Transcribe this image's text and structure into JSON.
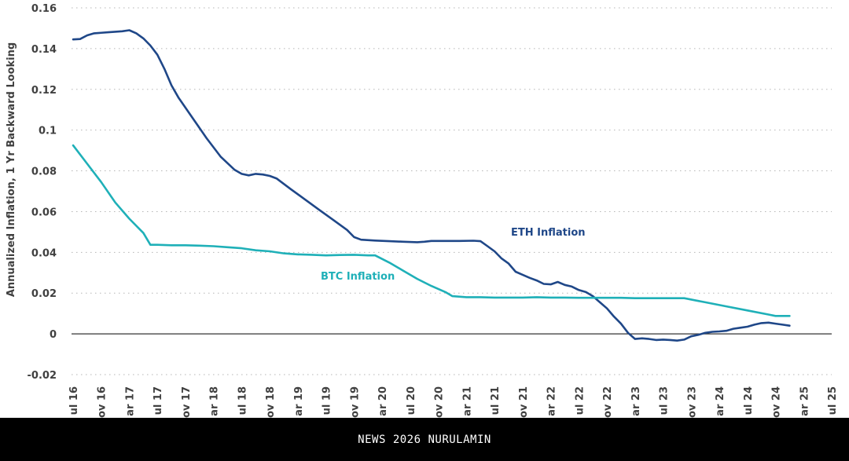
{
  "chart_data": {
    "type": "line",
    "title": "",
    "xlabel": "",
    "ylabel": "Annualized Inflation, 1 Yr Backward Looking",
    "ylim": [
      -0.02,
      0.16
    ],
    "yticks": [
      -0.02,
      0,
      0.02,
      0.04,
      0.06,
      0.08,
      0.1,
      0.12,
      0.14,
      0.16
    ],
    "ytick_labels": [
      "-0.02",
      "0",
      "0.02",
      "0.04",
      "0.06",
      "0.08",
      "0.1",
      "0.12",
      "0.14",
      "0.16"
    ],
    "grid": "horizontal-dotted",
    "zero_line": true,
    "x_range_months": [
      0,
      108
    ],
    "xtick_labels": [
      "ul 16",
      "ov 16",
      "ar 17",
      "ul 17",
      "ov 17",
      "ar 18",
      "ul 18",
      "ov 18",
      "ar 19",
      "ul 19",
      "ov 19",
      "ar 20",
      "ul 20",
      "ov 20",
      "ar 21",
      "ul 21",
      "ov 21",
      "ar 22",
      "ul 22",
      "ov 22",
      "ar 23",
      "ul 23",
      "ov 23",
      "ar 24",
      "ul 24",
      "ov 24",
      "ar 25",
      "ul 25"
    ],
    "series": [
      {
        "name": "ETH Inflation",
        "color": "#1f4788",
        "label": "ETH Inflation",
        "points": [
          [
            0,
            0.1445
          ],
          [
            1,
            0.1447
          ],
          [
            2,
            0.1465
          ],
          [
            3,
            0.1475
          ],
          [
            5,
            0.148
          ],
          [
            7,
            0.1485
          ],
          [
            8,
            0.149
          ],
          [
            9,
            0.1475
          ],
          [
            10,
            0.145
          ],
          [
            11,
            0.1415
          ],
          [
            12,
            0.137
          ],
          [
            13,
            0.13
          ],
          [
            14,
            0.122
          ],
          [
            15,
            0.116
          ],
          [
            17,
            0.106
          ],
          [
            19,
            0.096
          ],
          [
            21,
            0.087
          ],
          [
            23,
            0.0805
          ],
          [
            24,
            0.0785
          ],
          [
            25,
            0.0778
          ],
          [
            26,
            0.0785
          ],
          [
            27,
            0.0782
          ],
          [
            28,
            0.0775
          ],
          [
            29,
            0.0762
          ],
          [
            31,
            0.071
          ],
          [
            33,
            0.066
          ],
          [
            35,
            0.061
          ],
          [
            37,
            0.056
          ],
          [
            39,
            0.051
          ],
          [
            40,
            0.0475
          ],
          [
            41,
            0.0462
          ],
          [
            43,
            0.0458
          ],
          [
            45,
            0.0455
          ],
          [
            47,
            0.0452
          ],
          [
            49,
            0.045
          ],
          [
            50,
            0.0452
          ],
          [
            51,
            0.0456
          ],
          [
            53,
            0.0456
          ],
          [
            55,
            0.0456
          ],
          [
            57,
            0.0457
          ],
          [
            58,
            0.0455
          ],
          [
            59,
            0.043
          ],
          [
            60,
            0.0405
          ],
          [
            61,
            0.037
          ],
          [
            62,
            0.0345
          ],
          [
            63,
            0.0305
          ],
          [
            64,
            0.029
          ],
          [
            65,
            0.0275
          ],
          [
            66,
            0.0262
          ],
          [
            67,
            0.0245
          ],
          [
            68,
            0.0243
          ],
          [
            69,
            0.0255
          ],
          [
            70,
            0.024
          ],
          [
            71,
            0.0232
          ],
          [
            72,
            0.0215
          ],
          [
            73,
            0.0205
          ],
          [
            74,
            0.0185
          ],
          [
            75,
            0.0155
          ],
          [
            76,
            0.0125
          ],
          [
            77,
            0.0085
          ],
          [
            78,
            0.005
          ],
          [
            79,
            0.0005
          ],
          [
            80,
            -0.0025
          ],
          [
            81,
            -0.0022
          ],
          [
            82,
            -0.0025
          ],
          [
            83,
            -0.003
          ],
          [
            84,
            -0.0028
          ],
          [
            85,
            -0.003
          ],
          [
            86,
            -0.0033
          ],
          [
            87,
            -0.0028
          ],
          [
            88,
            -0.0012
          ],
          [
            89,
            -0.0005
          ],
          [
            90,
            0.0005
          ],
          [
            91,
            0.001
          ],
          [
            92,
            0.0012
          ],
          [
            93,
            0.0015
          ],
          [
            94,
            0.0025
          ],
          [
            95,
            0.003
          ],
          [
            96,
            0.0035
          ],
          [
            97,
            0.0045
          ],
          [
            98,
            0.0053
          ],
          [
            99,
            0.0055
          ],
          [
            100,
            0.005
          ],
          [
            101,
            0.0045
          ],
          [
            102,
            0.004
          ]
        ]
      },
      {
        "name": "BTC Inflation",
        "color": "#1fb0b8",
        "label": "BTC Inflation",
        "points": [
          [
            0,
            0.0925
          ],
          [
            2,
            0.0835
          ],
          [
            4,
            0.0745
          ],
          [
            6,
            0.0645
          ],
          [
            8,
            0.0565
          ],
          [
            10,
            0.0495
          ],
          [
            11,
            0.0437
          ],
          [
            12,
            0.0437
          ],
          [
            14,
            0.0435
          ],
          [
            16,
            0.0435
          ],
          [
            18,
            0.0433
          ],
          [
            20,
            0.043
          ],
          [
            22,
            0.0425
          ],
          [
            24,
            0.042
          ],
          [
            26,
            0.041
          ],
          [
            28,
            0.0405
          ],
          [
            30,
            0.0395
          ],
          [
            32,
            0.039
          ],
          [
            34,
            0.0388
          ],
          [
            36,
            0.0385
          ],
          [
            38,
            0.0387
          ],
          [
            40,
            0.0388
          ],
          [
            42,
            0.0385
          ],
          [
            43,
            0.0385
          ],
          [
            45,
            0.035
          ],
          [
            47,
            0.031
          ],
          [
            49,
            0.027
          ],
          [
            51,
            0.0235
          ],
          [
            53,
            0.0205
          ],
          [
            54,
            0.0185
          ],
          [
            56,
            0.018
          ],
          [
            58,
            0.018
          ],
          [
            60,
            0.0178
          ],
          [
            62,
            0.0178
          ],
          [
            64,
            0.0178
          ],
          [
            66,
            0.018
          ],
          [
            68,
            0.0178
          ],
          [
            70,
            0.0178
          ],
          [
            72,
            0.0177
          ],
          [
            74,
            0.0177
          ],
          [
            76,
            0.0177
          ],
          [
            78,
            0.0177
          ],
          [
            80,
            0.0175
          ],
          [
            82,
            0.0175
          ],
          [
            84,
            0.0175
          ],
          [
            87,
            0.0175
          ],
          [
            90,
            0.0155
          ],
          [
            93,
            0.0135
          ],
          [
            96,
            0.0115
          ],
          [
            99,
            0.0095
          ],
          [
            100,
            0.0088
          ],
          [
            102,
            0.0088
          ]
        ]
      }
    ]
  },
  "footer": {
    "watermark": "NEWS 2026 NURULAMIN"
  }
}
